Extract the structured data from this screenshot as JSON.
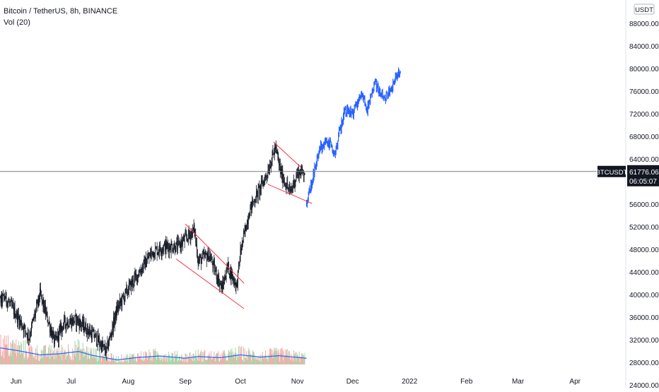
{
  "legend": {
    "title": "Bitcoin / TetherUS, 8h, BINANCE",
    "volume_label": "Vol (20)"
  },
  "colors": {
    "candle": "#131722",
    "projection": "#2962ff",
    "channel": "#f23645",
    "volume_up": "#a5d6a7",
    "volume_down": "#f7a9a7",
    "vol_ma": "#2962ff",
    "price_line": "#787b86",
    "badge_bg": "#131722"
  },
  "chart_data": {
    "type": "candlestick",
    "symbol": "BTCUSDT",
    "currency_label": "USDT",
    "last_price": "61776.06",
    "countdown": "06:05:07",
    "x_tick_labels": [
      "Jun",
      "Jul",
      "Aug",
      "Sep",
      "Oct",
      "Nov",
      "Dec",
      "2022",
      "Feb",
      "Mar",
      "Apr"
    ],
    "y_tick_labels": [
      "88000.00",
      "84000.00",
      "80000.00",
      "76000.00",
      "72000.00",
      "68000.00",
      "64000.00",
      "56000.00",
      "52000.00",
      "48000.00",
      "44000.00",
      "40000.00",
      "36000.00",
      "32000.00",
      "28000.00",
      "24000.00"
    ],
    "ylim": [
      23500,
      89000
    ],
    "price_key_points": [
      [
        "2021-05-20",
        38000
      ],
      [
        "2021-05-26",
        39500
      ],
      [
        "2021-06-01",
        36500
      ],
      [
        "2021-06-08",
        32500
      ],
      [
        "2021-06-14",
        40000
      ],
      [
        "2021-06-22",
        31500
      ],
      [
        "2021-06-27",
        35000
      ],
      [
        "2021-07-04",
        35500
      ],
      [
        "2021-07-14",
        32500
      ],
      [
        "2021-07-20",
        29800
      ],
      [
        "2021-07-26",
        37500
      ],
      [
        "2021-08-01",
        41000
      ],
      [
        "2021-08-14",
        47500
      ],
      [
        "2021-08-21",
        48500
      ],
      [
        "2021-08-28",
        48500
      ],
      [
        "2021-09-06",
        51500
      ],
      [
        "2021-09-08",
        46000
      ],
      [
        "2021-09-14",
        47000
      ],
      [
        "2021-09-21",
        41000
      ],
      [
        "2021-09-24",
        45000
      ],
      [
        "2021-09-29",
        41500
      ],
      [
        "2021-10-01",
        47500
      ],
      [
        "2021-10-06",
        55000
      ],
      [
        "2021-10-15",
        61000
      ],
      [
        "2021-10-20",
        66000
      ],
      [
        "2021-10-23",
        61500
      ],
      [
        "2021-10-28",
        58000
      ],
      [
        "2021-11-01",
        61500
      ],
      [
        "2021-11-05",
        61800
      ]
    ],
    "projection_key_points": [
      [
        "2021-11-06",
        56500
      ],
      [
        "2021-11-09",
        60000
      ],
      [
        "2021-11-13",
        66000
      ],
      [
        "2021-11-18",
        67000
      ],
      [
        "2021-11-21",
        64800
      ],
      [
        "2021-11-27",
        73000
      ],
      [
        "2021-12-01",
        72000
      ],
      [
        "2021-12-06",
        75500
      ],
      [
        "2021-12-09",
        73000
      ],
      [
        "2021-12-13",
        77500
      ],
      [
        "2021-12-18",
        74500
      ],
      [
        "2021-12-22",
        76500
      ],
      [
        "2021-12-27",
        79800
      ]
    ],
    "channels": [
      {
        "upper": [
          [
            "2021-09-01",
            52500
          ],
          [
            "2021-10-03",
            42000
          ]
        ],
        "lower": [
          [
            "2021-08-27",
            46300
          ],
          [
            "2021-10-03",
            37500
          ]
        ]
      },
      {
        "upper": [
          [
            "2021-10-19",
            67000
          ],
          [
            "2021-11-03",
            62500
          ]
        ],
        "lower": [
          [
            "2021-10-16",
            59500
          ],
          [
            "2021-11-09",
            56100
          ]
        ]
      }
    ],
    "volume_ma_key_points": [
      [
        "2021-05-20",
        0.62
      ],
      [
        "2021-06-01",
        0.5
      ],
      [
        "2021-06-14",
        0.34
      ],
      [
        "2021-06-25",
        0.38
      ],
      [
        "2021-07-05",
        0.46
      ],
      [
        "2021-07-12",
        0.33
      ],
      [
        "2021-07-26",
        0.16
      ],
      [
        "2021-08-05",
        0.24
      ],
      [
        "2021-08-18",
        0.3
      ],
      [
        "2021-09-01",
        0.22
      ],
      [
        "2021-09-08",
        0.28
      ],
      [
        "2021-09-20",
        0.24
      ],
      [
        "2021-10-01",
        0.34
      ],
      [
        "2021-10-12",
        0.26
      ],
      [
        "2021-10-22",
        0.31
      ],
      [
        "2021-11-01",
        0.25
      ],
      [
        "2021-11-06",
        0.22
      ]
    ]
  }
}
